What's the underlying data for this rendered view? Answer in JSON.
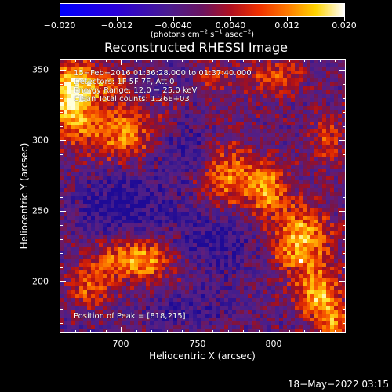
{
  "chart_data": {
    "type": "heatmap",
    "title": "Reconstructed RHESSI Image",
    "xlabel": "Heliocentric X (arcsec)",
    "ylabel": "Heliocentric Y (arcsec)",
    "xlim": [
      660,
      847
    ],
    "ylim": [
      163,
      358
    ],
    "x_ticks": [
      700,
      750,
      800
    ],
    "y_ticks": [
      200,
      250,
      300,
      350
    ],
    "colorbar": {
      "min": -0.02,
      "max": 0.02,
      "ticks": [
        -0.02,
        -0.012,
        -0.004,
        0.004,
        0.012,
        0.02
      ],
      "tick_labels": [
        "−0.020",
        "−0.012",
        "−0.0040",
        "0.0040",
        "0.012",
        "0.020"
      ],
      "units": "(photons cm",
      "units_exp1": "−2",
      "units_mid": " s",
      "units_exp2": "−1",
      "units_tail": " asec",
      "units_exp3": "−2",
      "units_close": ")"
    },
    "annotations": {
      "time_range": "15−Feb−2016 01:36:28.000 to 01:37:40.000",
      "detectors": "Detectors: 1F 5F 7F, Att 0",
      "energy_range": "Energy Range: 12.0 − 25.0 keV",
      "method": "Clean    Total counts: 1.26E+03",
      "peak": "Position of Peak = [818,215]"
    },
    "peak_position": [
      818,
      215
    ],
    "total_counts": 1260,
    "energy_range_keV": [
      12.0,
      25.0
    ],
    "grid": false
  },
  "timestamp": "18−May−2022 03:15"
}
